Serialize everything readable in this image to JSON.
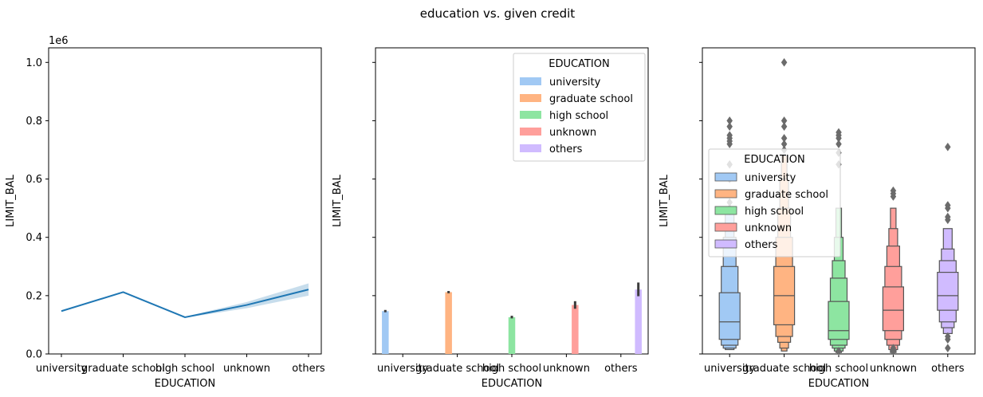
{
  "suptitle": "education vs. given credit",
  "chart_data": [
    {
      "type": "line",
      "title": "",
      "xlabel": "EDUCATION",
      "ylabel": "LIMIT_BAL",
      "offset_label": "1e6",
      "categories": [
        "university",
        "graduate school",
        "high school",
        "unknown",
        "others"
      ],
      "values": [
        0.147,
        0.212,
        0.126,
        0.168,
        0.221
      ],
      "ci_low": [
        0.145,
        0.21,
        0.124,
        0.157,
        0.2
      ],
      "ci_high": [
        0.149,
        0.214,
        0.128,
        0.178,
        0.242
      ],
      "ylim": [
        0,
        1.05
      ],
      "yticks": [
        "0.0",
        "0.2",
        "0.4",
        "0.6",
        "0.8",
        "1.0"
      ],
      "color": "#1f77b4"
    },
    {
      "type": "bar",
      "xlabel": "EDUCATION",
      "ylabel": "LIMIT_BAL",
      "categories": [
        "university",
        "graduate school",
        "high school",
        "unknown",
        "others"
      ],
      "hue_order": [
        "university",
        "graduate school",
        "high school",
        "unknown",
        "others"
      ],
      "values": [
        0.147,
        0.212,
        0.126,
        0.168,
        0.221
      ],
      "err_low": [
        0.143,
        0.208,
        0.122,
        0.155,
        0.198
      ],
      "err_high": [
        0.151,
        0.216,
        0.131,
        0.181,
        0.245
      ],
      "colors": [
        "#a1c9f4",
        "#ffb482",
        "#8de5a1",
        "#ff9f9b",
        "#d0bbff"
      ],
      "legend": {
        "title": "EDUCATION",
        "position": "top-right"
      }
    },
    {
      "type": "boxen",
      "xlabel": "EDUCATION",
      "ylabel": "LIMIT_BAL",
      "categories": [
        "university",
        "graduate school",
        "high school",
        "unknown",
        "others"
      ],
      "hue_order": [
        "university",
        "graduate school",
        "high school",
        "unknown",
        "others"
      ],
      "colors": [
        "#a1c9f4",
        "#ffb482",
        "#8de5a1",
        "#ff9f9b",
        "#d0bbff"
      ],
      "medians": [
        0.11,
        0.2,
        0.08,
        0.15,
        0.2
      ],
      "boxes": [
        [
          [
            0.05,
            0.21
          ],
          [
            0.03,
            0.3
          ],
          [
            0.02,
            0.4
          ],
          [
            0.015,
            0.48
          ]
        ],
        [
          [
            0.1,
            0.3
          ],
          [
            0.06,
            0.4
          ],
          [
            0.04,
            0.5
          ],
          [
            0.02,
            0.6
          ],
          [
            0.01,
            0.68
          ]
        ],
        [
          [
            0.05,
            0.18
          ],
          [
            0.03,
            0.26
          ],
          [
            0.02,
            0.32
          ],
          [
            0.01,
            0.4
          ],
          [
            0.005,
            0.5
          ]
        ],
        [
          [
            0.08,
            0.23
          ],
          [
            0.05,
            0.3
          ],
          [
            0.03,
            0.37
          ],
          [
            0.015,
            0.43
          ],
          [
            0.005,
            0.5
          ]
        ],
        [
          [
            0.15,
            0.28
          ],
          [
            0.11,
            0.32
          ],
          [
            0.09,
            0.36
          ],
          [
            0.07,
            0.43
          ]
        ]
      ],
      "outliers": [
        [
          0.49,
          0.5,
          0.52,
          0.55,
          0.6,
          0.65,
          0.72,
          0.73,
          0.74,
          0.75,
          0.78,
          0.8
        ],
        [
          0.7,
          0.72,
          0.74,
          0.78,
          0.8,
          1.0
        ],
        [
          0.01,
          0.65,
          0.69,
          0.72,
          0.74,
          0.75,
          0.76
        ],
        [
          0.01,
          0.015,
          0.02,
          0.54,
          0.55,
          0.56
        ],
        [
          0.02,
          0.05,
          0.06,
          0.46,
          0.47,
          0.5,
          0.51,
          0.71
        ]
      ],
      "outlier_color": "#6b6b6b",
      "legend": {
        "title": "EDUCATION",
        "position": "center-left"
      }
    }
  ]
}
